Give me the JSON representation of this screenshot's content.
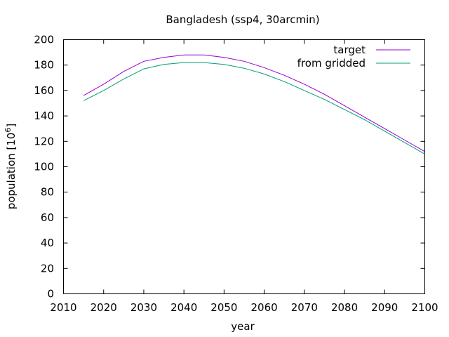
{
  "chart_data": {
    "type": "line",
    "title": "Bangladesh (ssp4, 30arcmin)",
    "xlabel": "year",
    "ylabel_base": "population [10",
    "ylabel_exp": "6",
    "ylabel_close": "]",
    "xlim": [
      2010,
      2100
    ],
    "ylim": [
      0,
      200
    ],
    "xticks": [
      2010,
      2020,
      2030,
      2040,
      2050,
      2060,
      2070,
      2080,
      2090,
      2100
    ],
    "yticks": [
      0,
      20,
      40,
      60,
      80,
      100,
      120,
      140,
      160,
      180,
      200
    ],
    "grid": false,
    "legend_position": "top-right",
    "colors": {
      "target": "#9400d3",
      "from_gridded": "#009e73"
    },
    "series": [
      {
        "name": "target",
        "x": [
          2015,
          2020,
          2025,
          2030,
          2035,
          2040,
          2045,
          2050,
          2055,
          2060,
          2065,
          2070,
          2075,
          2080,
          2085,
          2090,
          2095,
          2100
        ],
        "y": [
          156,
          165,
          175,
          183,
          186,
          188,
          188,
          186,
          183,
          178,
          172,
          165,
          157,
          148,
          139,
          130,
          121,
          112
        ]
      },
      {
        "name": "from gridded",
        "x": [
          2015,
          2020,
          2025,
          2030,
          2035,
          2040,
          2045,
          2050,
          2055,
          2060,
          2065,
          2070,
          2075,
          2080,
          2085,
          2090,
          2095,
          2100
        ],
        "y": [
          152,
          160,
          169,
          177,
          180.5,
          182,
          182,
          180.5,
          177.5,
          173,
          167,
          160,
          153,
          145,
          137,
          128,
          119,
          110
        ]
      }
    ]
  }
}
